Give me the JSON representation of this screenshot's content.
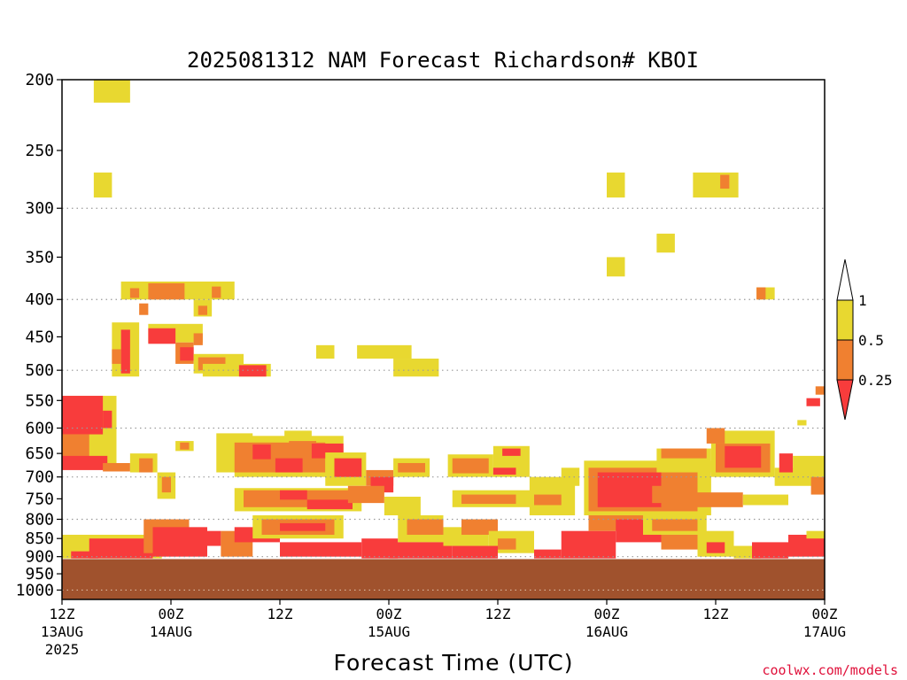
{
  "chart_data": {
    "type": "heatmap",
    "title": "2025081312 NAM Forecast Richardson# KBOI",
    "xlabel": "Forecast Time (UTC)",
    "ylabel": "",
    "x_unit": "hours since 12Z 13AUG 2025",
    "xlim": [
      0,
      84
    ],
    "x_ticks": [
      {
        "hour": 0,
        "label": "12Z",
        "sub": "13AUG",
        "sub2": "2025"
      },
      {
        "hour": 12,
        "label": "00Z",
        "sub": "14AUG",
        "sub2": ""
      },
      {
        "hour": 24,
        "label": "12Z",
        "sub": "",
        "sub2": ""
      },
      {
        "hour": 36,
        "label": "00Z",
        "sub": "15AUG",
        "sub2": ""
      },
      {
        "hour": 48,
        "label": "12Z",
        "sub": "",
        "sub2": ""
      },
      {
        "hour": 60,
        "label": "00Z",
        "sub": "16AUG",
        "sub2": ""
      },
      {
        "hour": 72,
        "label": "12Z",
        "sub": "",
        "sub2": ""
      },
      {
        "hour": 84,
        "label": "00Z",
        "sub": "17AUG",
        "sub2": ""
      }
    ],
    "y_unit": "hPa (log-pressure)",
    "ylim": [
      1030,
      200
    ],
    "y_ticks": [
      200,
      250,
      300,
      350,
      400,
      450,
      500,
      550,
      600,
      650,
      700,
      750,
      800,
      850,
      900,
      950,
      1000
    ],
    "grid_levels": [
      300,
      400,
      500,
      600,
      700,
      800,
      900,
      1000
    ],
    "grid": "dotted horizontal",
    "surface_pressure": 907,
    "surface_color": "#a0522d",
    "legend": {
      "placement": "right",
      "labels": [
        "1",
        "0.5",
        "0.25"
      ],
      "bins": [
        {
          "range": "0.5-1",
          "color": "#e8d830"
        },
        {
          "range": "0.25-0.5",
          "color": "#f08030"
        },
        {
          "range": "<0.25",
          "color": "#f83c3c"
        }
      ]
    },
    "colors": {
      "yellow": "#e8d830",
      "orange": "#f08030",
      "red": "#f83c3c"
    },
    "cells": [
      {
        "t0": 3.5,
        "t1": 7.5,
        "p0": 200,
        "p1": 215,
        "c": "yellow"
      },
      {
        "t0": 3.5,
        "t1": 5.5,
        "p0": 268,
        "p1": 290,
        "c": "yellow"
      },
      {
        "t0": 60,
        "t1": 62,
        "p0": 268,
        "p1": 290,
        "c": "yellow"
      },
      {
        "t0": 69.5,
        "t1": 74.5,
        "p0": 268,
        "p1": 290,
        "c": "yellow"
      },
      {
        "t0": 72.5,
        "t1": 73.5,
        "p0": 270,
        "p1": 282,
        "c": "orange"
      },
      {
        "t0": 65.5,
        "t1": 67.5,
        "p0": 325,
        "p1": 345,
        "c": "yellow"
      },
      {
        "t0": 60,
        "t1": 62,
        "p0": 350,
        "p1": 372,
        "c": "yellow"
      },
      {
        "t0": 76.5,
        "t1": 78.5,
        "p0": 385,
        "p1": 400,
        "c": "yellow"
      },
      {
        "t0": 76.5,
        "t1": 77.5,
        "p0": 385,
        "p1": 400,
        "c": "orange"
      },
      {
        "t0": 6.5,
        "t1": 19,
        "p0": 378,
        "p1": 400,
        "c": "yellow"
      },
      {
        "t0": 9.5,
        "t1": 13.5,
        "p0": 380,
        "p1": 400,
        "c": "orange"
      },
      {
        "t0": 7.5,
        "t1": 8.5,
        "p0": 386,
        "p1": 398,
        "c": "orange"
      },
      {
        "t0": 16.5,
        "t1": 17.5,
        "p0": 384,
        "p1": 398,
        "c": "orange"
      },
      {
        "t0": 8.5,
        "t1": 9.5,
        "p0": 405,
        "p1": 420,
        "c": "orange"
      },
      {
        "t0": 14.5,
        "t1": 16.5,
        "p0": 400,
        "p1": 422,
        "c": "yellow"
      },
      {
        "t0": 15,
        "t1": 16,
        "p0": 408,
        "p1": 420,
        "c": "orange"
      },
      {
        "t0": 5.5,
        "t1": 8.5,
        "p0": 430,
        "p1": 510,
        "c": "yellow"
      },
      {
        "t0": 6.5,
        "t1": 7.5,
        "p0": 440,
        "p1": 505,
        "c": "red"
      },
      {
        "t0": 5.5,
        "t1": 6.5,
        "p0": 468,
        "p1": 490,
        "c": "orange"
      },
      {
        "t0": 9.5,
        "t1": 15.5,
        "p0": 432,
        "p1": 458,
        "c": "yellow"
      },
      {
        "t0": 9.5,
        "t1": 12.5,
        "p0": 438,
        "p1": 460,
        "c": "red"
      },
      {
        "t0": 12.5,
        "t1": 14.5,
        "p0": 458,
        "p1": 490,
        "c": "orange"
      },
      {
        "t0": 13,
        "t1": 14.5,
        "p0": 465,
        "p1": 485,
        "c": "red"
      },
      {
        "t0": 14.5,
        "t1": 20,
        "p0": 475,
        "p1": 505,
        "c": "yellow"
      },
      {
        "t0": 15,
        "t1": 18,
        "p0": 480,
        "p1": 500,
        "c": "orange"
      },
      {
        "t0": 14.5,
        "t1": 15.5,
        "p0": 445,
        "p1": 462,
        "c": "orange"
      },
      {
        "t0": 15.5,
        "t1": 23,
        "p0": 490,
        "p1": 510,
        "c": "yellow"
      },
      {
        "t0": 19.5,
        "t1": 22.5,
        "p0": 492,
        "p1": 510,
        "c": "red"
      },
      {
        "t0": 28,
        "t1": 30,
        "p0": 462,
        "p1": 482,
        "c": "yellow"
      },
      {
        "t0": 32.5,
        "t1": 38.5,
        "p0": 462,
        "p1": 482,
        "c": "yellow"
      },
      {
        "t0": 36.5,
        "t1": 41.5,
        "p0": 482,
        "p1": 510,
        "c": "yellow"
      },
      {
        "t0": 0,
        "t1": 6,
        "p0": 542,
        "p1": 680,
        "c": "yellow"
      },
      {
        "t0": 0,
        "t1": 4.5,
        "p0": 542,
        "p1": 612,
        "c": "red"
      },
      {
        "t0": 4.5,
        "t1": 5.5,
        "p0": 568,
        "p1": 600,
        "c": "red"
      },
      {
        "t0": 0,
        "t1": 3,
        "p0": 612,
        "p1": 680,
        "c": "orange"
      },
      {
        "t0": 0,
        "t1": 5,
        "p0": 655,
        "p1": 685,
        "c": "red"
      },
      {
        "t0": 4.5,
        "t1": 7.5,
        "p0": 670,
        "p1": 688,
        "c": "orange"
      },
      {
        "t0": 7.5,
        "t1": 10.5,
        "p0": 650,
        "p1": 690,
        "c": "yellow"
      },
      {
        "t0": 8.5,
        "t1": 10,
        "p0": 660,
        "p1": 690,
        "c": "orange"
      },
      {
        "t0": 10.5,
        "t1": 12.5,
        "p0": 690,
        "p1": 750,
        "c": "yellow"
      },
      {
        "t0": 11,
        "t1": 12,
        "p0": 700,
        "p1": 735,
        "c": "orange"
      },
      {
        "t0": 12.5,
        "t1": 14.5,
        "p0": 625,
        "p1": 645,
        "c": "yellow"
      },
      {
        "t0": 13,
        "t1": 14,
        "p0": 628,
        "p1": 642,
        "c": "orange"
      },
      {
        "t0": 17,
        "t1": 21,
        "p0": 610,
        "p1": 690,
        "c": "yellow"
      },
      {
        "t0": 19,
        "t1": 31,
        "p0": 615,
        "p1": 700,
        "c": "yellow"
      },
      {
        "t0": 19,
        "t1": 29,
        "p0": 628,
        "p1": 690,
        "c": "orange"
      },
      {
        "t0": 21,
        "t1": 23,
        "p0": 632,
        "p1": 662,
        "c": "red"
      },
      {
        "t0": 23.5,
        "t1": 26.5,
        "p0": 660,
        "p1": 690,
        "c": "red"
      },
      {
        "t0": 25,
        "t1": 28,
        "p0": 625,
        "p1": 650,
        "c": "orange"
      },
      {
        "t0": 24.5,
        "t1": 27.5,
        "p0": 605,
        "p1": 622,
        "c": "yellow"
      },
      {
        "t0": 27.5,
        "t1": 31,
        "p0": 630,
        "p1": 660,
        "c": "red"
      },
      {
        "t0": 29,
        "t1": 33.5,
        "p0": 648,
        "p1": 720,
        "c": "yellow"
      },
      {
        "t0": 30,
        "t1": 33,
        "p0": 660,
        "p1": 700,
        "c": "red"
      },
      {
        "t0": 33.5,
        "t1": 36.5,
        "p0": 685,
        "p1": 720,
        "c": "orange"
      },
      {
        "t0": 34,
        "t1": 36.5,
        "p0": 700,
        "p1": 735,
        "c": "red"
      },
      {
        "t0": 36.5,
        "t1": 40.5,
        "p0": 660,
        "p1": 700,
        "c": "yellow"
      },
      {
        "t0": 37,
        "t1": 40,
        "p0": 670,
        "p1": 690,
        "c": "orange"
      },
      {
        "t0": 19,
        "t1": 33,
        "p0": 725,
        "p1": 780,
        "c": "yellow"
      },
      {
        "t0": 20,
        "t1": 32,
        "p0": 730,
        "p1": 770,
        "c": "orange"
      },
      {
        "t0": 24,
        "t1": 27,
        "p0": 730,
        "p1": 752,
        "c": "red"
      },
      {
        "t0": 27,
        "t1": 32,
        "p0": 752,
        "p1": 775,
        "c": "red"
      },
      {
        "t0": 31.5,
        "t1": 35.5,
        "p0": 720,
        "p1": 760,
        "c": "orange"
      },
      {
        "t0": 35.5,
        "t1": 39.5,
        "p0": 745,
        "p1": 790,
        "c": "yellow"
      },
      {
        "t0": 42.5,
        "t1": 47.5,
        "p0": 652,
        "p1": 700,
        "c": "yellow"
      },
      {
        "t0": 43,
        "t1": 47,
        "p0": 660,
        "p1": 692,
        "c": "orange"
      },
      {
        "t0": 47.5,
        "t1": 51.5,
        "p0": 635,
        "p1": 700,
        "c": "yellow"
      },
      {
        "t0": 48.5,
        "t1": 50.5,
        "p0": 640,
        "p1": 655,
        "c": "red"
      },
      {
        "t0": 47.5,
        "t1": 50,
        "p0": 680,
        "p1": 695,
        "c": "red"
      },
      {
        "t0": 43,
        "t1": 54,
        "p0": 730,
        "p1": 770,
        "c": "yellow"
      },
      {
        "t0": 44,
        "t1": 50,
        "p0": 740,
        "p1": 762,
        "c": "orange"
      },
      {
        "t0": 51.5,
        "t1": 56.5,
        "p0": 700,
        "p1": 790,
        "c": "yellow"
      },
      {
        "t0": 52,
        "t1": 55,
        "p0": 740,
        "p1": 765,
        "c": "orange"
      },
      {
        "t0": 55,
        "t1": 57,
        "p0": 680,
        "p1": 720,
        "c": "yellow"
      },
      {
        "t0": 57.5,
        "t1": 71.5,
        "p0": 665,
        "p1": 790,
        "c": "yellow"
      },
      {
        "t0": 58,
        "t1": 70,
        "p0": 680,
        "p1": 780,
        "c": "orange"
      },
      {
        "t0": 59,
        "t1": 66,
        "p0": 690,
        "p1": 770,
        "c": "red"
      },
      {
        "t0": 65,
        "t1": 69,
        "p0": 720,
        "p1": 760,
        "c": "orange"
      },
      {
        "t0": 65.5,
        "t1": 71.5,
        "p0": 640,
        "p1": 690,
        "c": "yellow"
      },
      {
        "t0": 66,
        "t1": 71,
        "p0": 640,
        "p1": 660,
        "c": "orange"
      },
      {
        "t0": 71.5,
        "t1": 78.5,
        "p0": 605,
        "p1": 700,
        "c": "yellow"
      },
      {
        "t0": 72,
        "t1": 78,
        "p0": 630,
        "p1": 690,
        "c": "orange"
      },
      {
        "t0": 73,
        "t1": 77,
        "p0": 635,
        "p1": 680,
        "c": "red"
      },
      {
        "t0": 71,
        "t1": 73,
        "p0": 600,
        "p1": 630,
        "c": "orange"
      },
      {
        "t0": 78.5,
        "t1": 83,
        "p0": 680,
        "p1": 720,
        "c": "yellow"
      },
      {
        "t0": 79,
        "t1": 80.5,
        "p0": 650,
        "p1": 690,
        "c": "red"
      },
      {
        "t0": 80.5,
        "t1": 84,
        "p0": 655,
        "p1": 700,
        "c": "yellow"
      },
      {
        "t0": 82.5,
        "t1": 84,
        "p0": 700,
        "p1": 740,
        "c": "orange"
      },
      {
        "t0": 68,
        "t1": 75,
        "p0": 735,
        "p1": 770,
        "c": "orange"
      },
      {
        "t0": 75,
        "t1": 80,
        "p0": 740,
        "p1": 765,
        "c": "yellow"
      },
      {
        "t0": 82,
        "t1": 83.5,
        "p0": 546,
        "p1": 560,
        "c": "red"
      },
      {
        "t0": 84,
        "t1": 85,
        "p0": 548,
        "p1": 590,
        "c": "red"
      },
      {
        "t0": 81,
        "t1": 82,
        "p0": 585,
        "p1": 595,
        "c": "yellow"
      },
      {
        "t0": 83,
        "t1": 84,
        "p0": 526,
        "p1": 540,
        "c": "orange"
      },
      {
        "t0": 0,
        "t1": 11,
        "p0": 840,
        "p1": 905,
        "c": "yellow"
      },
      {
        "t0": 3,
        "t1": 10,
        "p0": 850,
        "p1": 905,
        "c": "red"
      },
      {
        "t0": 1,
        "t1": 4,
        "p0": 885,
        "p1": 905,
        "c": "red"
      },
      {
        "t0": 9,
        "t1": 14,
        "p0": 800,
        "p1": 890,
        "c": "orange"
      },
      {
        "t0": 10,
        "t1": 16,
        "p0": 820,
        "p1": 900,
        "c": "red"
      },
      {
        "t0": 14,
        "t1": 17.5,
        "p0": 830,
        "p1": 870,
        "c": "red"
      },
      {
        "t0": 17.5,
        "t1": 21,
        "p0": 830,
        "p1": 900,
        "c": "orange"
      },
      {
        "t0": 19,
        "t1": 24,
        "p0": 820,
        "p1": 860,
        "c": "red"
      },
      {
        "t0": 21,
        "t1": 31,
        "p0": 790,
        "p1": 850,
        "c": "yellow"
      },
      {
        "t0": 22,
        "t1": 30,
        "p0": 800,
        "p1": 840,
        "c": "orange"
      },
      {
        "t0": 24,
        "t1": 29,
        "p0": 810,
        "p1": 830,
        "c": "red"
      },
      {
        "t0": 24,
        "t1": 33,
        "p0": 860,
        "p1": 900,
        "c": "red"
      },
      {
        "t0": 33,
        "t1": 37,
        "p0": 850,
        "p1": 905,
        "c": "red"
      },
      {
        "t0": 37,
        "t1": 42,
        "p0": 790,
        "p1": 860,
        "c": "yellow"
      },
      {
        "t0": 38,
        "t1": 42,
        "p0": 800,
        "p1": 840,
        "c": "orange"
      },
      {
        "t0": 36,
        "t1": 43,
        "p0": 860,
        "p1": 905,
        "c": "red"
      },
      {
        "t0": 42,
        "t1": 47,
        "p0": 820,
        "p1": 870,
        "c": "yellow"
      },
      {
        "t0": 44,
        "t1": 48,
        "p0": 800,
        "p1": 840,
        "c": "orange"
      },
      {
        "t0": 47,
        "t1": 52,
        "p0": 830,
        "p1": 890,
        "c": "yellow"
      },
      {
        "t0": 48,
        "t1": 50,
        "p0": 850,
        "p1": 880,
        "c": "orange"
      },
      {
        "t0": 43,
        "t1": 48,
        "p0": 870,
        "p1": 905,
        "c": "red"
      },
      {
        "t0": 52,
        "t1": 55,
        "p0": 880,
        "p1": 905,
        "c": "red"
      },
      {
        "t0": 55,
        "t1": 61,
        "p0": 830,
        "p1": 905,
        "c": "red"
      },
      {
        "t0": 58,
        "t1": 64,
        "p0": 790,
        "p1": 830,
        "c": "orange"
      },
      {
        "t0": 61,
        "t1": 66,
        "p0": 800,
        "p1": 860,
        "c": "red"
      },
      {
        "t0": 64,
        "t1": 71,
        "p0": 790,
        "p1": 840,
        "c": "yellow"
      },
      {
        "t0": 65,
        "t1": 70,
        "p0": 800,
        "p1": 830,
        "c": "orange"
      },
      {
        "t0": 66,
        "t1": 70,
        "p0": 840,
        "p1": 880,
        "c": "orange"
      },
      {
        "t0": 70,
        "t1": 74,
        "p0": 830,
        "p1": 900,
        "c": "yellow"
      },
      {
        "t0": 71,
        "t1": 73,
        "p0": 860,
        "p1": 890,
        "c": "red"
      },
      {
        "t0": 74,
        "t1": 77,
        "p0": 870,
        "p1": 905,
        "c": "yellow"
      },
      {
        "t0": 76,
        "t1": 80,
        "p0": 860,
        "p1": 905,
        "c": "red"
      },
      {
        "t0": 80,
        "t1": 84,
        "p0": 840,
        "p1": 900,
        "c": "red"
      },
      {
        "t0": 82,
        "t1": 84,
        "p0": 830,
        "p1": 850,
        "c": "yellow"
      }
    ]
  },
  "credit": "coolwx.com/models"
}
